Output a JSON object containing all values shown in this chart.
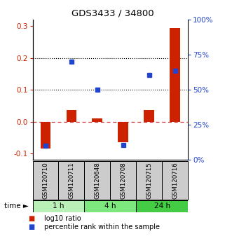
{
  "title": "GDS3433 / 34800",
  "samples": [
    "GSM120710",
    "GSM120711",
    "GSM120648",
    "GSM120708",
    "GSM120715",
    "GSM120716"
  ],
  "log10_ratio": [
    -0.085,
    0.038,
    0.01,
    -0.065,
    0.038,
    0.295
  ],
  "percentile_rank_pct": [
    6.0,
    72.0,
    50.0,
    7.0,
    62.0,
    65.0
  ],
  "time_groups": [
    {
      "label": "1 h",
      "start": 0,
      "end": 2,
      "color": "#b8f0b8"
    },
    {
      "label": "4 h",
      "start": 2,
      "end": 4,
      "color": "#7de87d"
    },
    {
      "label": "24 h",
      "start": 4,
      "end": 6,
      "color": "#44cc44"
    }
  ],
  "bar_color_red": "#cc2200",
  "bar_color_blue": "#2244cc",
  "ylim_left": [
    -0.12,
    0.32
  ],
  "ylim_right": [
    0,
    100
  ],
  "yticks_left": [
    -0.1,
    0.0,
    0.1,
    0.2,
    0.3
  ],
  "yticks_right": [
    0,
    25,
    50,
    75,
    100
  ],
  "dotted_lines": [
    0.1,
    0.2
  ],
  "zero_line_color": "#cc3333",
  "sample_box_color": "#cccccc",
  "left_axis_color": "#cc2200",
  "right_axis_color": "#2244cc"
}
